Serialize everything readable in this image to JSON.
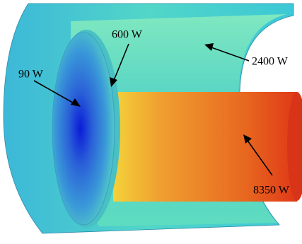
{
  "annotations": {
    "inner_disk_center": "90 W",
    "disk_rim": "600 W",
    "outer_shell": "2400 W",
    "rod": "8350 W"
  }
}
